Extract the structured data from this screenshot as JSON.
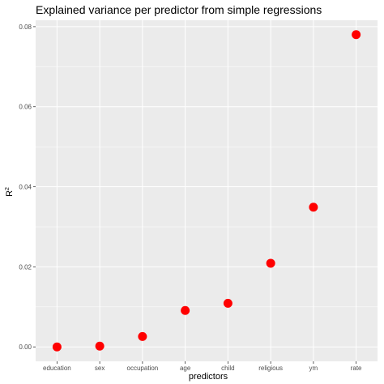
{
  "chart_data": {
    "type": "scatter",
    "title": "Explained variance per predictor from simple regressions",
    "xlabel": "predictors",
    "ylabel": "R",
    "ylabel_superscript": "2",
    "categories": [
      "education",
      "sex",
      "occupation",
      "age",
      "child",
      "religious",
      "ym",
      "rate"
    ],
    "values": [
      0.0,
      0.0002,
      0.0026,
      0.0091,
      0.0109,
      0.0209,
      0.0349,
      0.078
    ],
    "yticks": [
      0.0,
      0.02,
      0.04,
      0.06,
      0.08
    ],
    "ytick_labels": [
      "0.00",
      "0.02",
      "0.04",
      "0.06",
      "0.08"
    ],
    "ylim": [
      -0.0036,
      0.0816
    ],
    "grid": true,
    "panel_color": "#ebebeb",
    "grid_color": "#ffffff",
    "point_color": "#ff0000"
  }
}
